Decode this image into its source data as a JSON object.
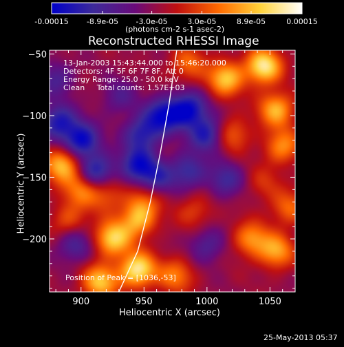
{
  "chart_data": {
    "type": "heatmap",
    "title": "Reconstructed RHESSI Image",
    "xlabel": "Heliocentric X (arcsec)",
    "ylabel": "Heliocentric Y (arcsec)",
    "xlim": [
      875,
      1070
    ],
    "ylim": [
      -243,
      -47
    ],
    "xticks": [
      900,
      950,
      1000,
      1050
    ],
    "yticks": [
      -50,
      -100,
      -150,
      -200
    ],
    "colorbar": {
      "ticks": [
        "-0.00015",
        "-8.9e-05",
        "-3.0e-05",
        "3.0e-05",
        "8.9e-05",
        "0.00015"
      ],
      "tick_values": [
        -0.00015,
        -8.9e-05,
        -3e-05,
        3e-05,
        8.9e-05,
        0.00015
      ],
      "range": [
        -0.00015,
        0.00015
      ],
      "unit_label": "(photons cm-2 s-1 asec-2)",
      "colors": [
        "#0000c8",
        "#3d2a9a",
        "#6a0a7a",
        "#c01010",
        "#ff6a00",
        "#ffd23a",
        "#ffffff"
      ]
    },
    "annotations": [
      "13-Jan-2003 15:43:44.000 to 15:46:20.000",
      "Detectors: 4F 5F 6F 7F 8F, Att 0",
      "Energy Range: 25.0 - 50.0 keV",
      "Clean     Total counts: 1.57E+03"
    ],
    "peak_label": "Position of Peak = [1036,-53]",
    "peak": [
      1036,
      -53
    ],
    "limb_curve": [
      [
        930,
        -243
      ],
      [
        945,
        -210
      ],
      [
        955,
        -170
      ],
      [
        963,
        -130
      ],
      [
        970,
        -90
      ],
      [
        976,
        -47
      ]
    ],
    "sources": [
      {
        "x": 1045,
        "y": -60,
        "v": 0.00015
      },
      {
        "x": 1015,
        "y": -70,
        "v": 0.00012
      },
      {
        "x": 985,
        "y": -58,
        "v": 7e-05
      },
      {
        "x": 1055,
        "y": -95,
        "v": 0.00011
      },
      {
        "x": 1020,
        "y": -115,
        "v": 7e-05
      },
      {
        "x": 1060,
        "y": -125,
        "v": 9e-05
      },
      {
        "x": 885,
        "y": -140,
        "v": 0.00012
      },
      {
        "x": 900,
        "y": -160,
        "v": 8e-05
      },
      {
        "x": 920,
        "y": -165,
        "v": 6e-05
      },
      {
        "x": 890,
        "y": -185,
        "v": 6e-05
      },
      {
        "x": 925,
        "y": -200,
        "v": 0.00013
      },
      {
        "x": 945,
        "y": -185,
        "v": 0.0001
      },
      {
        "x": 950,
        "y": -170,
        "v": 6e-05
      },
      {
        "x": 945,
        "y": -225,
        "v": 0.00015
      },
      {
        "x": 915,
        "y": -235,
        "v": 0.00012
      },
      {
        "x": 975,
        "y": -230,
        "v": 8e-05
      },
      {
        "x": 1035,
        "y": -200,
        "v": 9e-05
      },
      {
        "x": 1055,
        "y": -210,
        "v": 0.0001
      },
      {
        "x": 1065,
        "y": -175,
        "v": 7e-05
      },
      {
        "x": 990,
        "y": -178,
        "v": 5e-05
      },
      {
        "x": 1045,
        "y": -155,
        "v": 4e-05
      },
      {
        "x": 985,
        "y": -95,
        "v": -0.00012
      },
      {
        "x": 965,
        "y": -100,
        "v": -0.00011
      },
      {
        "x": 1000,
        "y": -115,
        "v": -0.0001
      },
      {
        "x": 948,
        "y": -115,
        "v": -9e-05
      },
      {
        "x": 945,
        "y": -140,
        "v": -0.0001
      },
      {
        "x": 900,
        "y": -120,
        "v": -0.00012
      },
      {
        "x": 882,
        "y": -105,
        "v": -0.0001
      },
      {
        "x": 912,
        "y": -145,
        "v": -0.0001
      },
      {
        "x": 985,
        "y": -145,
        "v": -8e-05
      },
      {
        "x": 1015,
        "y": -152,
        "v": -7e-05
      },
      {
        "x": 895,
        "y": -205,
        "v": -7e-05
      },
      {
        "x": 1000,
        "y": -205,
        "v": -6e-05
      },
      {
        "x": 880,
        "y": -70,
        "v": -6e-05
      },
      {
        "x": 930,
        "y": -85,
        "v": -5e-05
      },
      {
        "x": 960,
        "y": -150,
        "v": -7e-05
      }
    ]
  },
  "footer": {
    "timestamp": "25-May-2013 05:37"
  }
}
